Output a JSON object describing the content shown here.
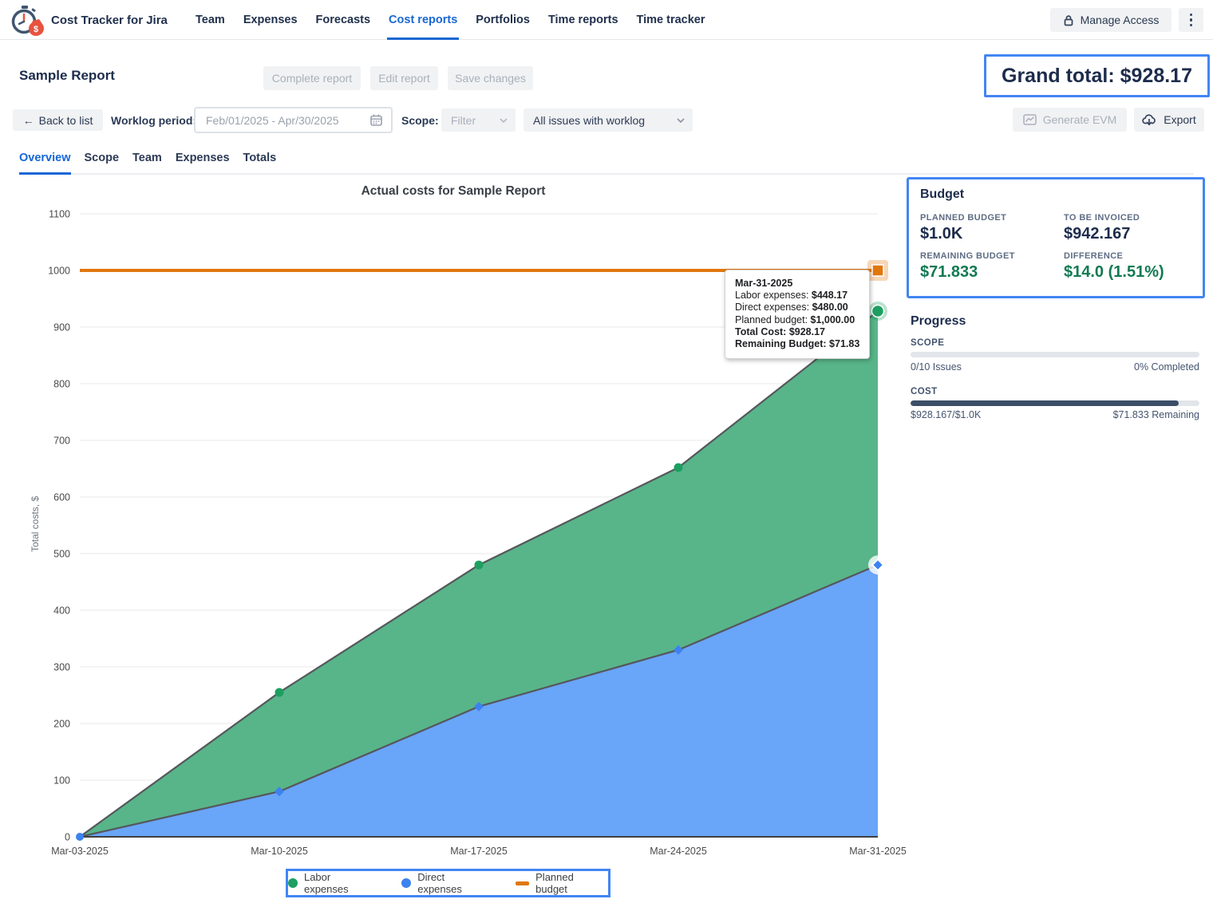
{
  "header": {
    "app_title": "Cost Tracker for Jira",
    "nav": [
      "Team",
      "Expenses",
      "Forecasts",
      "Cost reports",
      "Portfolios",
      "Time reports",
      "Time tracker"
    ],
    "active_nav": "Cost reports",
    "manage_access_label": "Manage Access"
  },
  "report": {
    "title": "Sample Report",
    "actions": [
      "Complete report",
      "Edit report",
      "Save changes"
    ],
    "grand_total": "Grand total: $928.17"
  },
  "toolbar": {
    "back_arrow": "←",
    "back_label": "Back to list",
    "worklog_label": "Worklog period:",
    "worklog_placeholder": "Feb/01/2025 - Apr/30/2025",
    "scope_label": "Scope:",
    "filter_value": "Filter",
    "issues_value": "All issues with worklog",
    "generate_evm_label": "Generate EVM",
    "export_label": "Export"
  },
  "tabs": [
    "Overview",
    "Scope",
    "Team",
    "Expenses",
    "Totals"
  ],
  "active_tab": "Overview",
  "chart_data": {
    "type": "area",
    "title": "Actual costs for Sample Report",
    "ylabel": "Total costs, $",
    "x": [
      "Mar-03-2025",
      "Mar-10-2025",
      "Mar-17-2025",
      "Mar-24-2025",
      "Mar-31-2025"
    ],
    "ylim": [
      0,
      1100
    ],
    "ytick_step": 100,
    "grid": true,
    "stacked": true,
    "series": [
      {
        "name": "Direct expenses",
        "values": [
          0,
          80,
          230,
          330,
          480
        ],
        "color": "#69a5f8",
        "marker": "diamond",
        "marker_color": "#3c82f0"
      },
      {
        "name": "Labor expenses",
        "values": [
          0,
          255,
          480,
          652,
          928.17
        ],
        "stack_total": true,
        "color": "#58b589",
        "marker": "circle",
        "marker_color": "#1d9f61"
      }
    ],
    "planned_budget": {
      "name": "Planned budget",
      "value": 1000,
      "color": "#e0770e"
    },
    "legend_position": "bottom"
  },
  "tooltip": {
    "title": "Mar-31-2025",
    "rows": [
      {
        "label": "Labor expenses: ",
        "value": "$448.17"
      },
      {
        "label": "Direct expenses: ",
        "value": "$480.00"
      },
      {
        "label": "Planned budget: ",
        "value": "$1,000.00"
      },
      {
        "label": "",
        "value": "Total Cost: $928.17"
      },
      {
        "label": "",
        "value": "Remaining Budget: $71.83"
      }
    ]
  },
  "budget": {
    "title": "Budget",
    "items": [
      {
        "label": "PLANNED BUDGET",
        "value": "$1.0K",
        "tone": "dark"
      },
      {
        "label": "TO BE INVOICED",
        "value": "$942.167",
        "tone": "dark"
      },
      {
        "label": "REMAINING BUDGET",
        "value": "$71.833",
        "tone": "green"
      },
      {
        "label": "DIFFERENCE",
        "value": "$14.0 (1.51%)",
        "tone": "green"
      }
    ]
  },
  "progress": {
    "title": "Progress",
    "scope": {
      "label": "SCOPE",
      "left": "0/10 Issues",
      "right": "0% Completed",
      "percent": "0%"
    },
    "cost": {
      "label": "COST",
      "left": "$928.167/$1.0K",
      "right": "$71.833 Remaining",
      "percent": "92.8%"
    }
  },
  "colors": {
    "highlight_border": "#4286f4",
    "nav_active": "#1967d2",
    "positive_green": "#117a53",
    "progress_fill": "#3d4f68",
    "area_outline": "#55575c"
  }
}
